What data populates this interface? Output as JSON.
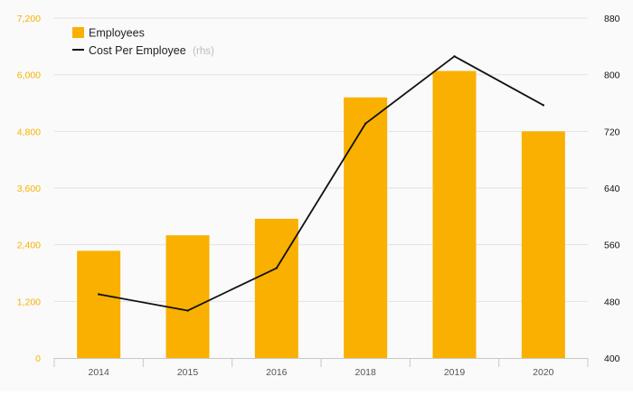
{
  "chart_data": {
    "type": "bar",
    "categories": [
      "2014",
      "2015",
      "2016",
      "2018",
      "2019",
      "2020"
    ],
    "series": [
      {
        "name": "Employees",
        "kind": "bar",
        "axis": "left",
        "color": "#f9b000",
        "values": [
          2270,
          2600,
          2950,
          5520,
          6080,
          4800
        ]
      },
      {
        "name": "Cost Per Employee",
        "name_suffix": "(rhs)",
        "kind": "line",
        "axis": "right",
        "color": "#111111",
        "values": [
          490,
          467,
          527,
          731,
          826,
          757
        ]
      }
    ],
    "y_left": {
      "min": 0,
      "max": 7200,
      "ticks": [
        "0",
        "1,200",
        "2,400",
        "3,600",
        "4,800",
        "6,000",
        "7,200"
      ],
      "tick_values": [
        0,
        1200,
        2400,
        3600,
        4800,
        6000,
        7200
      ],
      "color": "#f9b000"
    },
    "y_right": {
      "min": 400,
      "max": 880,
      "ticks": [
        "400",
        "480",
        "560",
        "640",
        "720",
        "800",
        "880"
      ],
      "tick_values": [
        400,
        480,
        560,
        640,
        720,
        800,
        880
      ],
      "color": "#111111"
    },
    "grid": true,
    "legend": "top-left",
    "title": "",
    "xlabel": "",
    "ylabel": ""
  }
}
